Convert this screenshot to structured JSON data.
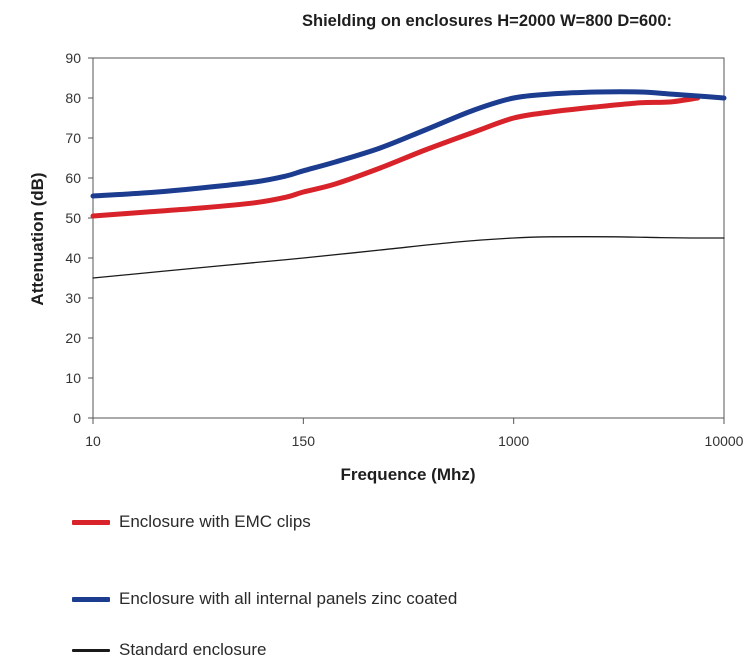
{
  "chart_data": {
    "type": "line",
    "title": "Shielding on enclosures H=2000 W=800 D=600:",
    "xlabel": "Frequence (Mhz)",
    "ylabel": "Attenuation (dB)",
    "x_ticks": [
      "10",
      "150",
      "1000",
      "10000"
    ],
    "x_tick_values": [
      10,
      150,
      1000,
      10000
    ],
    "x_axis_note": "tick labels are equally spaced",
    "y_ticks": [
      0,
      10,
      20,
      30,
      40,
      50,
      60,
      70,
      80,
      90
    ],
    "ylim": [
      0,
      90
    ],
    "grid": false,
    "legend_position": "bottom",
    "series": [
      {
        "name": "Enclosure with EMC clips",
        "color": "#d8232a",
        "line_style": "thick",
        "x": [
          10,
          20,
          40,
          80,
          120,
          150,
          200,
          300,
          450,
          700,
          1000,
          1500,
          2500,
          4000,
          5500,
          7500
        ],
        "y": [
          50.5,
          51.5,
          52.5,
          53.8,
          55.2,
          56.5,
          58.5,
          62.5,
          67,
          71.5,
          75,
          76.5,
          77.8,
          78.8,
          79,
          80
        ]
      },
      {
        "name": "Enclosure with all internal panels zinc coated",
        "color": "#1b3c8f",
        "line_style": "thick",
        "x": [
          10,
          20,
          40,
          80,
          120,
          150,
          200,
          300,
          450,
          700,
          1000,
          1500,
          2500,
          4000,
          5500,
          7500,
          10000
        ],
        "y": [
          55.5,
          56.3,
          57.5,
          59,
          60.5,
          61.8,
          64,
          67.5,
          72,
          77,
          80,
          81,
          81.5,
          81.5,
          81,
          80.5,
          80
        ]
      },
      {
        "name": "Standard enclosure",
        "color": "#1a1a1a",
        "line_style": "thin",
        "x": [
          10,
          50,
          150,
          300,
          600,
          1000,
          1500,
          3000,
          5000,
          7000,
          10000
        ],
        "y": [
          35,
          38,
          40,
          42,
          44,
          45,
          45.3,
          45.3,
          45.1,
          45,
          45
        ]
      }
    ]
  }
}
